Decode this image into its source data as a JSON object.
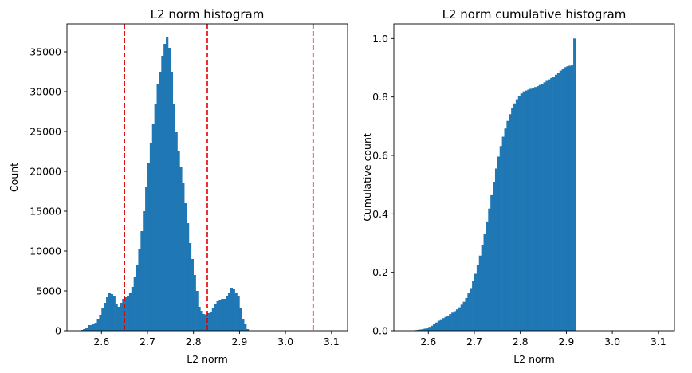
{
  "chart_data": [
    {
      "type": "bar",
      "title": "L2 norm histogram",
      "xlabel": "L2 norm",
      "ylabel": "Count",
      "xlim": [
        2.525,
        3.135
      ],
      "ylim": [
        0,
        38500
      ],
      "xticks": [
        2.6,
        2.7,
        2.8,
        2.9,
        3.0,
        3.1
      ],
      "xtick_labels": [
        "2.6",
        "2.7",
        "2.8",
        "2.9",
        "3.0",
        "3.1"
      ],
      "yticks": [
        0,
        5000,
        10000,
        15000,
        20000,
        25000,
        30000,
        35000
      ],
      "ytick_labels": [
        "0",
        "5000",
        "10000",
        "15000",
        "20000",
        "25000",
        "30000",
        "35000"
      ],
      "bin_start": 2.55,
      "bin_width": 0.005,
      "values": [
        0,
        100,
        200,
        400,
        700,
        700,
        800,
        1000,
        1500,
        2000,
        2800,
        3500,
        4200,
        4800,
        4600,
        4400,
        3300,
        3000,
        3500,
        4000,
        4200,
        4300,
        4700,
        5500,
        6800,
        8200,
        10200,
        12500,
        15000,
        18000,
        21000,
        23500,
        26000,
        28500,
        31000,
        32500,
        34500,
        36000,
        36800,
        35500,
        32500,
        28500,
        25000,
        22500,
        20500,
        18500,
        16000,
        13500,
        11000,
        9000,
        7000,
        5000,
        3000,
        2500,
        2100,
        2000,
        2200,
        2400,
        2800,
        3300,
        3700,
        3900,
        4000,
        4000,
        4300,
        4800,
        5400,
        5200,
        4800,
        4300,
        2800,
        1500,
        800,
        200
      ],
      "vlines": [
        2.65,
        2.83,
        3.06
      ],
      "color": "#1f77b4",
      "vline_color": "#e00000"
    },
    {
      "type": "bar",
      "title": "L2 norm cumulative histogram",
      "xlabel": "L2 norm",
      "ylabel": "Cumulative count",
      "xlim": [
        2.525,
        3.135
      ],
      "ylim": [
        0,
        1.05
      ],
      "xticks": [
        2.6,
        2.7,
        2.8,
        2.9,
        3.0,
        3.1
      ],
      "xtick_labels": [
        "2.6",
        "2.7",
        "2.8",
        "2.9",
        "3.0",
        "3.1"
      ],
      "yticks": [
        0,
        0.2,
        0.4,
        0.6,
        0.8,
        1.0
      ],
      "ytick_labels": [
        "0.0",
        "0.2",
        "0.4",
        "0.6",
        "0.8",
        "1.0"
      ],
      "bin_start": 2.55,
      "bin_width": 0.005,
      "values": [
        0.0,
        0.0,
        0.0,
        0.001,
        0.002,
        0.003,
        0.004,
        0.005,
        0.007,
        0.009,
        0.013,
        0.017,
        0.022,
        0.028,
        0.034,
        0.039,
        0.043,
        0.047,
        0.052,
        0.057,
        0.062,
        0.067,
        0.073,
        0.08,
        0.089,
        0.099,
        0.112,
        0.128,
        0.146,
        0.169,
        0.195,
        0.224,
        0.257,
        0.293,
        0.333,
        0.374,
        0.418,
        0.464,
        0.51,
        0.555,
        0.596,
        0.632,
        0.664,
        0.692,
        0.718,
        0.741,
        0.761,
        0.778,
        0.792,
        0.803,
        0.812,
        0.819,
        0.822,
        0.825,
        0.828,
        0.831,
        0.834,
        0.837,
        0.841,
        0.845,
        0.85,
        0.855,
        0.86,
        0.865,
        0.87,
        0.876,
        0.883,
        0.89,
        0.896,
        0.902,
        0.905,
        0.907,
        0.908,
        1.0
      ],
      "color": "#1f77b4"
    }
  ]
}
